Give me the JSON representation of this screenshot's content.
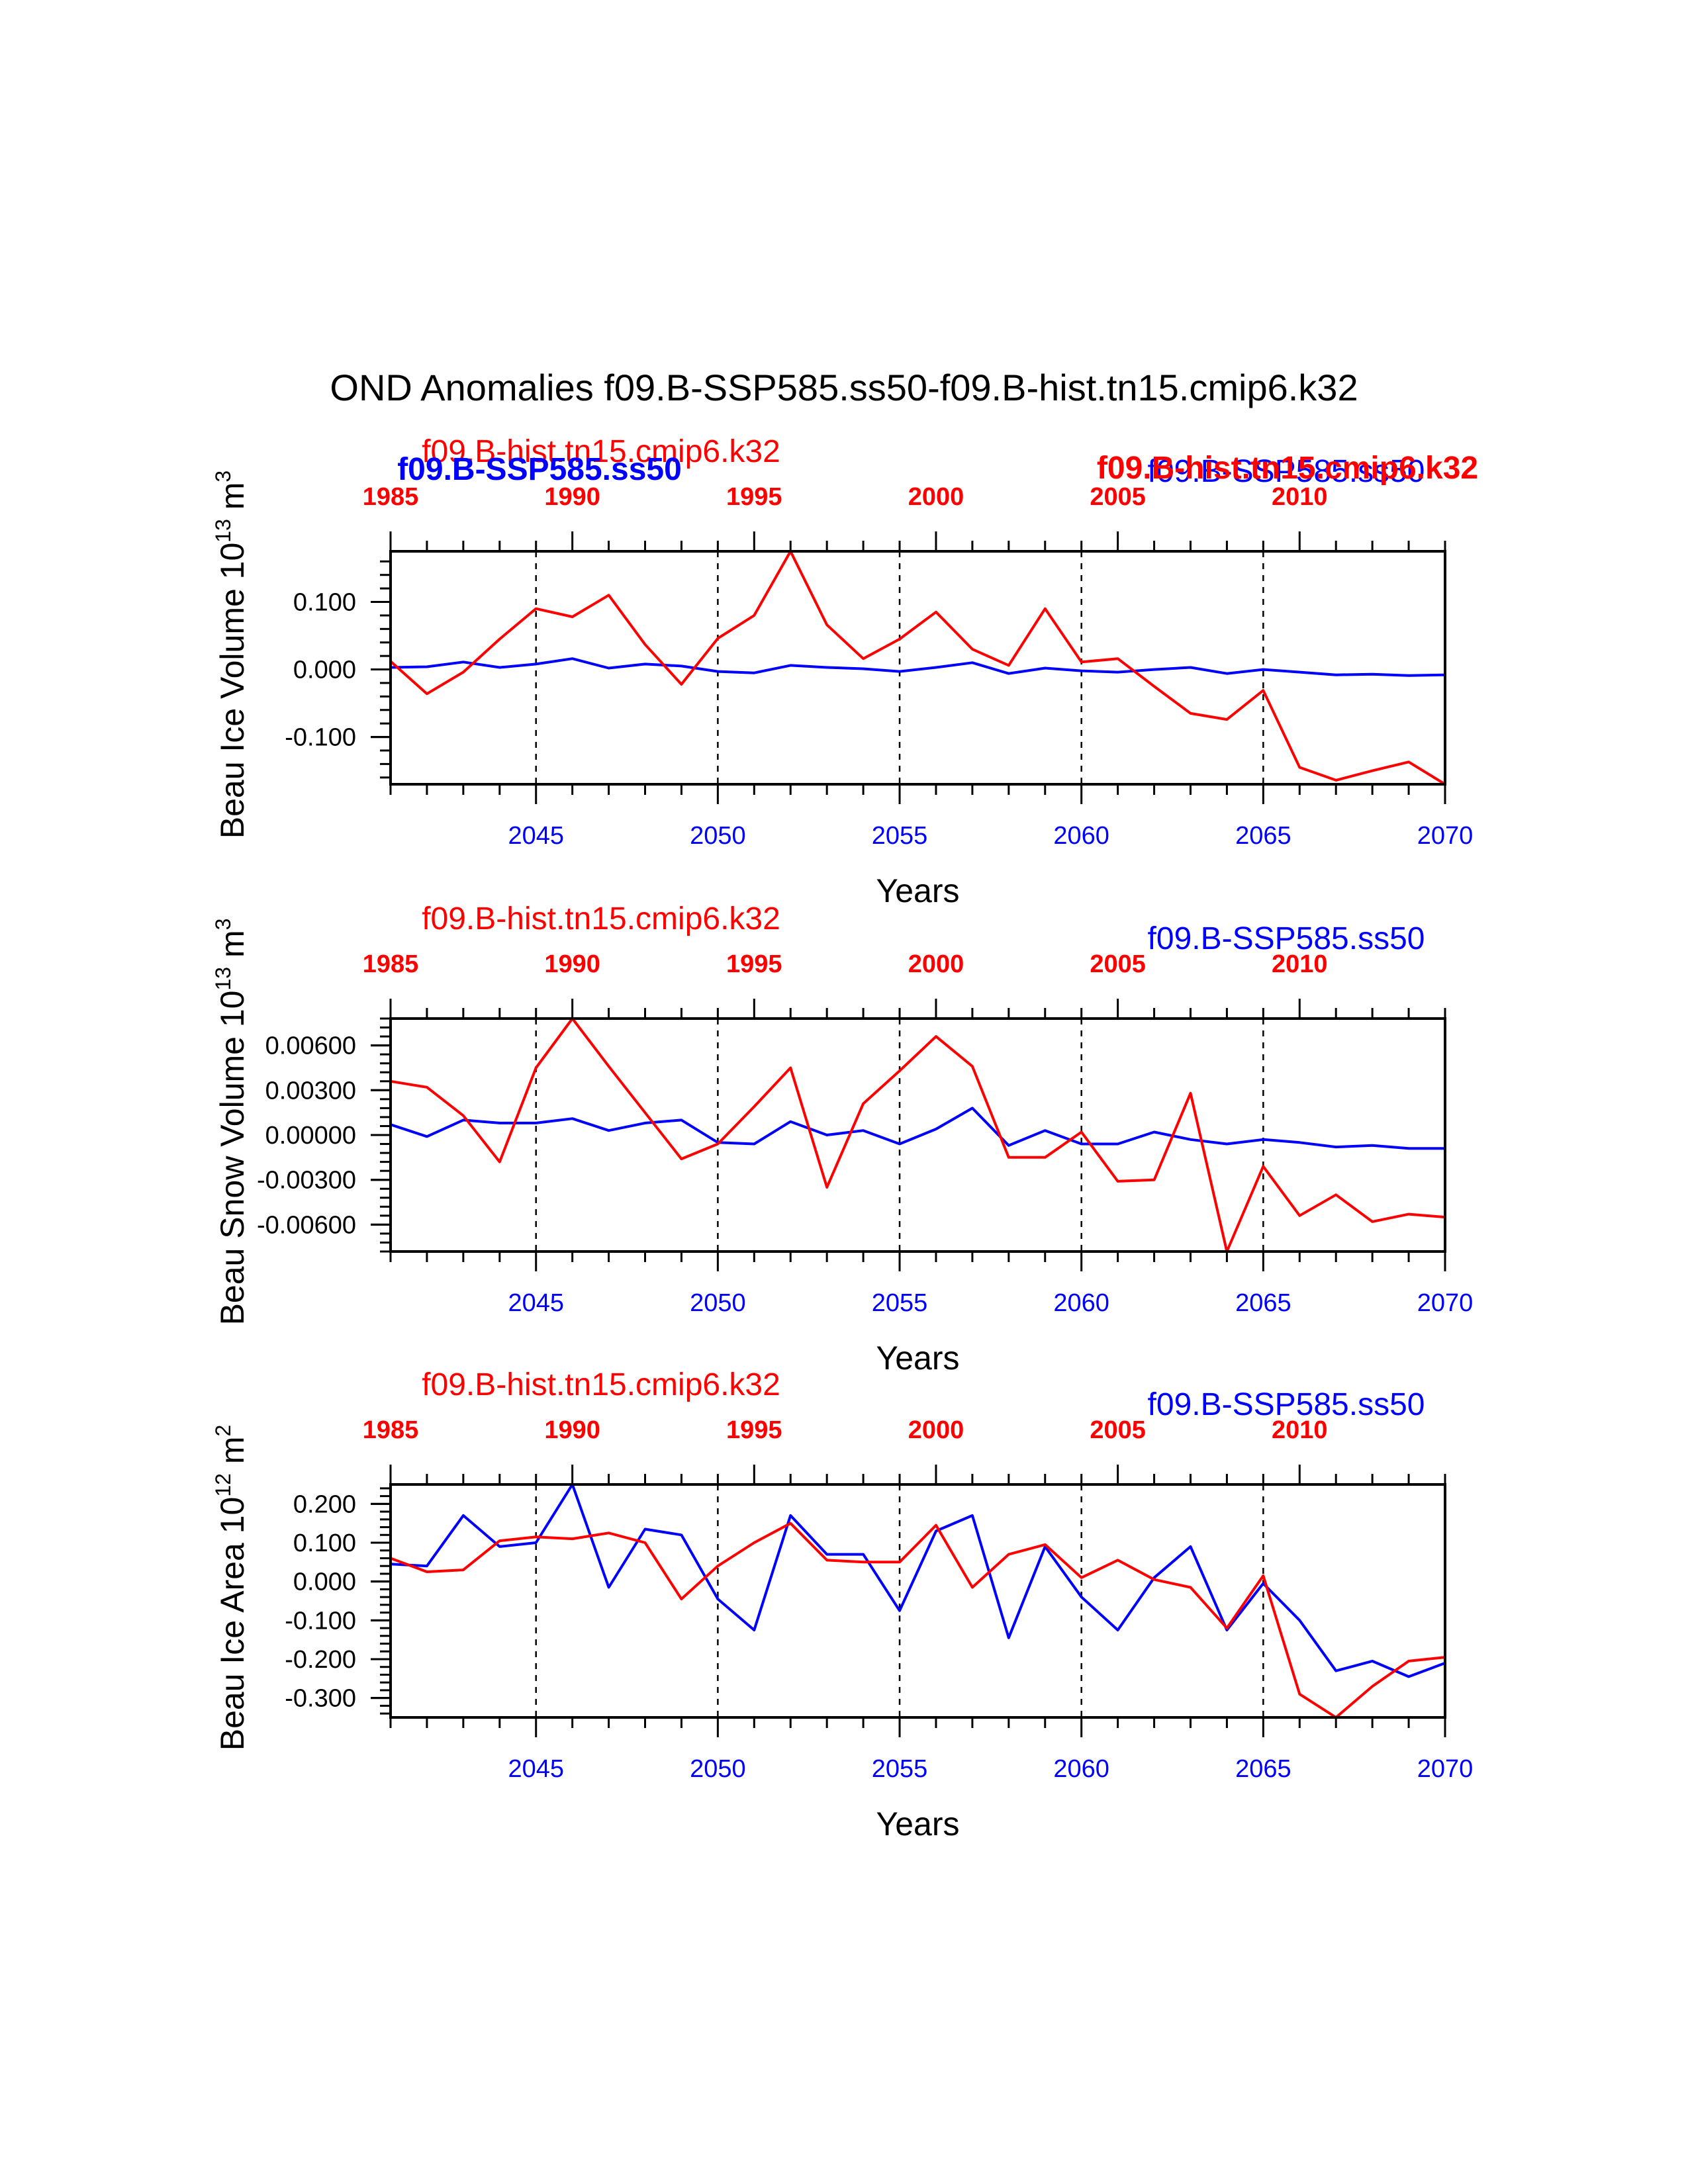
{
  "figure": {
    "title": "OND Anomalies f09.B-SSP585.ss50-f09.B-hist.tn15.cmip6.k32",
    "colors": {
      "ssp": "#0000ff",
      "hist": "#ff0000",
      "axis": "#000000"
    }
  },
  "chart_data": [
    {
      "type": "line",
      "ylabel": "Beau Ice Volume 10",
      "ylabel_sup": "13",
      "ylabel_unit": " m",
      "ylabel_unit_sup": "3",
      "xlabel": "Years",
      "legend_left": "f09.B-hist.tn15.cmip6.k32",
      "legend_right": "f09.B-SSP585.ss50",
      "overlay_left": "f09.B-SSP585.ss50",
      "overlay_right": "f09.B-hist.tn15.cmip6.k32",
      "xlim_bottom": [
        2041,
        2070
      ],
      "xlim_top": [
        1985,
        2014
      ],
      "ylim": [
        -0.17,
        0.175
      ],
      "yticks": [
        0.1,
        0.0,
        -0.1
      ],
      "yticklabels": [
        "0.100",
        "0.000",
        "-0.100"
      ],
      "yminor_step": 0.02,
      "bottom_ticks": [
        2045,
        2050,
        2055,
        2060,
        2065,
        2070
      ],
      "bottom_ticklabels": [
        "2045",
        "2050",
        "2055",
        "2060",
        "2065",
        "2070"
      ],
      "top_ticks": [
        1985,
        1990,
        1995,
        2000,
        2005,
        2010
      ],
      "top_ticklabels": [
        "1985",
        "1990",
        "1995",
        "2000",
        "2005",
        "2010"
      ],
      "reference_lines_x": [
        2045,
        2050,
        2055,
        2060,
        2065
      ],
      "series": [
        {
          "name": "f09.B-SSP585.ss50",
          "axis": "bottom",
          "color": "#0000ff",
          "x": [
            2041,
            2042,
            2043,
            2044,
            2045,
            2046,
            2047,
            2048,
            2049,
            2050,
            2051,
            2052,
            2053,
            2054,
            2055,
            2056,
            2057,
            2058,
            2059,
            2060,
            2061,
            2062,
            2063,
            2064,
            2065,
            2066,
            2067,
            2068,
            2069,
            2070
          ],
          "values": [
            0.003,
            0.004,
            0.011,
            0.003,
            0.008,
            0.016,
            0.002,
            0.008,
            0.005,
            -0.003,
            -0.005,
            0.006,
            0.003,
            0.001,
            -0.003,
            0.003,
            0.01,
            -0.006,
            0.002,
            -0.002,
            -0.004,
            0.0,
            0.003,
            -0.006,
            0.0,
            -0.004,
            -0.008,
            -0.007,
            -0.009,
            -0.008
          ]
        },
        {
          "name": "f09.B-hist.tn15.cmip6.k32",
          "axis": "top",
          "color": "#ff0000",
          "x": [
            1985,
            1986,
            1987,
            1988,
            1989,
            1990,
            1991,
            1992,
            1993,
            1994,
            1995,
            1996,
            1997,
            1998,
            1999,
            2000,
            2001,
            2002,
            2003,
            2004,
            2005,
            2006,
            2007,
            2008,
            2009,
            2010,
            2011,
            2012,
            2013,
            2014
          ],
          "values": [
            0.012,
            -0.036,
            -0.004,
            0.045,
            0.09,
            0.078,
            0.11,
            0.037,
            -0.022,
            0.046,
            0.08,
            0.175,
            0.066,
            0.016,
            0.045,
            0.085,
            0.03,
            0.006,
            0.09,
            0.011,
            0.016,
            -0.025,
            -0.065,
            -0.074,
            -0.031,
            -0.145,
            -0.164,
            -0.15,
            -0.137,
            -0.17
          ]
        }
      ]
    },
    {
      "type": "line",
      "ylabel": "Beau Snow Volume 10",
      "ylabel_sup": "13",
      "ylabel_unit": " m",
      "ylabel_unit_sup": "3",
      "xlabel": "Years",
      "legend_left": "f09.B-hist.tn15.cmip6.k32",
      "legend_right": "f09.B-SSP585.ss50",
      "xlim_bottom": [
        2041,
        2070
      ],
      "xlim_top": [
        1985,
        2014
      ],
      "ylim": [
        -0.0078,
        0.0078
      ],
      "yticks": [
        0.006,
        0.003,
        0.0,
        -0.003,
        -0.006
      ],
      "yticklabels": [
        "0.00600",
        "0.00300",
        "0.00000",
        "-0.00300",
        "-0.00600"
      ],
      "yminor_step": 0.0006,
      "bottom_ticks": [
        2045,
        2050,
        2055,
        2060,
        2065,
        2070
      ],
      "bottom_ticklabels": [
        "2045",
        "2050",
        "2055",
        "2060",
        "2065",
        "2070"
      ],
      "top_ticks": [
        1985,
        1990,
        1995,
        2000,
        2005,
        2010
      ],
      "top_ticklabels": [
        "1985",
        "1990",
        "1995",
        "2000",
        "2005",
        "2010"
      ],
      "reference_lines_x": [
        2045,
        2050,
        2055,
        2060,
        2065
      ],
      "series": [
        {
          "name": "f09.B-SSP585.ss50",
          "axis": "bottom",
          "color": "#0000ff",
          "x": [
            2041,
            2042,
            2043,
            2044,
            2045,
            2046,
            2047,
            2048,
            2049,
            2050,
            2051,
            2052,
            2053,
            2054,
            2055,
            2056,
            2057,
            2058,
            2059,
            2060,
            2061,
            2062,
            2063,
            2064,
            2065,
            2066,
            2067,
            2068,
            2069,
            2070
          ],
          "values": [
            0.0007,
            -0.0001,
            0.001,
            0.0008,
            0.0008,
            0.0011,
            0.0003,
            0.0008,
            0.001,
            -0.0005,
            -0.0006,
            0.0009,
            0.0,
            0.0003,
            -0.0006,
            0.0004,
            0.0018,
            -0.0007,
            0.0003,
            -0.0006,
            -0.0006,
            0.0002,
            -0.0003,
            -0.0006,
            -0.0003,
            -0.0005,
            -0.0008,
            -0.0007,
            -0.0009,
            -0.0009
          ]
        },
        {
          "name": "f09.B-hist.tn15.cmip6.k32",
          "axis": "top",
          "color": "#ff0000",
          "x": [
            1985,
            1986,
            1987,
            1988,
            1989,
            1990,
            1991,
            1992,
            1993,
            1994,
            1995,
            1996,
            1997,
            1998,
            1999,
            2000,
            2001,
            2002,
            2003,
            2004,
            2005,
            2006,
            2007,
            2008,
            2009,
            2010,
            2011,
            2012,
            2013,
            2014
          ],
          "values": [
            0.0036,
            0.0032,
            0.0013,
            -0.0018,
            0.0045,
            0.0078,
            0.0046,
            0.0015,
            -0.0016,
            -0.0006,
            0.0019,
            0.0045,
            -0.0035,
            0.0021,
            0.0043,
            0.0066,
            0.0046,
            -0.0015,
            -0.0015,
            0.0002,
            -0.0031,
            -0.003,
            0.0028,
            -0.0078,
            -0.0021,
            -0.0054,
            -0.004,
            -0.0058,
            -0.0053,
            -0.0055
          ]
        }
      ]
    },
    {
      "type": "line",
      "ylabel": "Beau Ice Area 10",
      "ylabel_sup": "12",
      "ylabel_unit": " m",
      "ylabel_unit_sup": "2",
      "xlabel": "Years",
      "legend_left": "f09.B-hist.tn15.cmip6.k32",
      "legend_right": "f09.B-SSP585.ss50",
      "xlim_bottom": [
        2041,
        2070
      ],
      "xlim_top": [
        1985,
        2014
      ],
      "ylim": [
        -0.35,
        0.25
      ],
      "yticks": [
        0.2,
        0.1,
        0.0,
        -0.1,
        -0.2,
        -0.3
      ],
      "yticklabels": [
        "0.200",
        "0.100",
        "0.000",
        "-0.100",
        "-0.200",
        "-0.300"
      ],
      "yminor_step": 0.02,
      "bottom_ticks": [
        2045,
        2050,
        2055,
        2060,
        2065,
        2070
      ],
      "bottom_ticklabels": [
        "2045",
        "2050",
        "2055",
        "2060",
        "2065",
        "2070"
      ],
      "top_ticks": [
        1985,
        1990,
        1995,
        2000,
        2005,
        2010
      ],
      "top_ticklabels": [
        "1985",
        "1990",
        "1995",
        "2000",
        "2005",
        "2010"
      ],
      "reference_lines_x": [
        2045,
        2050,
        2055,
        2060,
        2065
      ],
      "series": [
        {
          "name": "f09.B-SSP585.ss50",
          "axis": "bottom",
          "color": "#0000ff",
          "x": [
            2041,
            2042,
            2043,
            2044,
            2045,
            2046,
            2047,
            2048,
            2049,
            2050,
            2051,
            2052,
            2053,
            2054,
            2055,
            2056,
            2057,
            2058,
            2059,
            2060,
            2061,
            2062,
            2063,
            2064,
            2065,
            2066,
            2067,
            2068,
            2069,
            2070
          ],
          "values": [
            0.045,
            0.04,
            0.17,
            0.09,
            0.1,
            0.25,
            -0.015,
            0.135,
            0.12,
            -0.045,
            -0.125,
            0.17,
            0.07,
            0.07,
            -0.075,
            0.13,
            0.17,
            -0.145,
            0.09,
            -0.04,
            -0.125,
            0.01,
            0.09,
            -0.125,
            -0.005,
            -0.1,
            -0.23,
            -0.205,
            -0.245,
            -0.21
          ]
        },
        {
          "name": "f09.B-hist.tn15.cmip6.k32",
          "axis": "top",
          "color": "#ff0000",
          "x": [
            1985,
            1986,
            1987,
            1988,
            1989,
            1990,
            1991,
            1992,
            1993,
            1994,
            1995,
            1996,
            1997,
            1998,
            1999,
            2000,
            2001,
            2002,
            2003,
            2004,
            2005,
            2006,
            2007,
            2008,
            2009,
            2010,
            2011,
            2012,
            2013,
            2014
          ],
          "values": [
            0.06,
            0.025,
            0.03,
            0.105,
            0.115,
            0.11,
            0.125,
            0.1,
            -0.045,
            0.04,
            0.1,
            0.15,
            0.055,
            0.05,
            0.05,
            0.145,
            -0.015,
            0.07,
            0.095,
            0.01,
            0.055,
            0.005,
            -0.015,
            -0.12,
            0.015,
            -0.29,
            -0.35,
            -0.27,
            -0.205,
            -0.195
          ]
        }
      ]
    }
  ]
}
